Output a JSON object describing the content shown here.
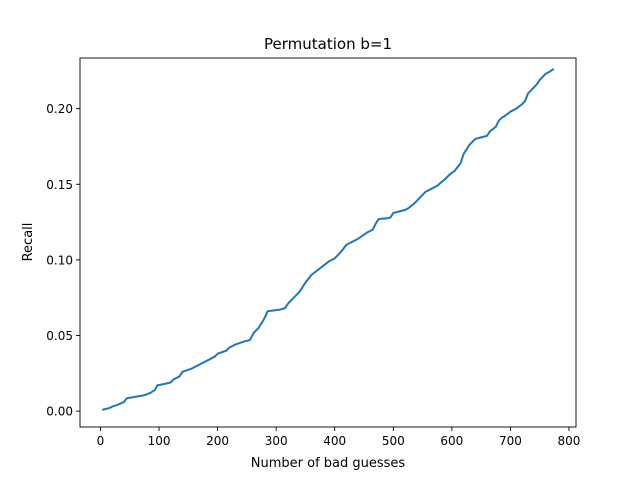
{
  "chart_data": {
    "type": "line",
    "title": "Permutation b=1",
    "xlabel": "Number of bad guesses",
    "ylabel": "Recall",
    "xlim": [
      -35,
      812
    ],
    "ylim": [
      -0.0105,
      0.2335
    ],
    "xticks": [
      0,
      100,
      200,
      300,
      400,
      500,
      600,
      700,
      800
    ],
    "xtick_labels": [
      "0",
      "100",
      "200",
      "300",
      "400",
      "500",
      "600",
      "700",
      "800"
    ],
    "yticks": [
      0.0,
      0.05,
      0.1,
      0.15,
      0.2
    ],
    "ytick_labels": [
      "0.00",
      "0.05",
      "0.10",
      "0.15",
      "0.20"
    ],
    "grid": false,
    "legend": "none",
    "series": [
      {
        "color": "#1f77b4",
        "x": [
          4,
          15,
          20,
          28,
          40,
          45,
          60,
          75,
          85,
          93,
          97,
          110,
          120,
          125,
          135,
          140,
          155,
          165,
          180,
          195,
          200,
          215,
          220,
          230,
          245,
          255,
          262,
          270,
          278,
          282,
          285,
          295,
          305,
          315,
          320,
          330,
          340,
          350,
          360,
          370,
          380,
          390,
          400,
          410,
          420,
          440,
          455,
          465,
          470,
          475,
          490,
          495,
          500,
          510,
          520,
          525,
          535,
          545,
          555,
          565,
          575,
          590,
          595,
          605,
          615,
          620,
          625,
          630,
          640,
          650,
          660,
          665,
          675,
          680,
          685,
          690,
          700,
          710,
          720,
          725,
          730,
          740,
          745,
          750,
          755,
          760,
          765,
          773
        ],
        "y": [
          0.001,
          0.002,
          0.003,
          0.004,
          0.006,
          0.0085,
          0.0095,
          0.0105,
          0.012,
          0.014,
          0.017,
          0.018,
          0.019,
          0.021,
          0.023,
          0.026,
          0.028,
          0.03,
          0.033,
          0.036,
          0.038,
          0.04,
          0.042,
          0.044,
          0.046,
          0.047,
          0.052,
          0.055,
          0.06,
          0.063,
          0.066,
          0.0665,
          0.067,
          0.068,
          0.071,
          0.075,
          0.079,
          0.085,
          0.09,
          0.093,
          0.096,
          0.099,
          0.101,
          0.105,
          0.11,
          0.114,
          0.118,
          0.12,
          0.124,
          0.127,
          0.1275,
          0.128,
          0.131,
          0.132,
          0.133,
          0.134,
          0.137,
          0.141,
          0.145,
          0.147,
          0.149,
          0.154,
          0.156,
          0.159,
          0.164,
          0.17,
          0.173,
          0.176,
          0.18,
          0.181,
          0.182,
          0.185,
          0.188,
          0.192,
          0.194,
          0.195,
          0.198,
          0.2,
          0.203,
          0.205,
          0.21,
          0.214,
          0.216,
          0.219,
          0.221,
          0.223,
          0.224,
          0.226
        ]
      }
    ]
  }
}
